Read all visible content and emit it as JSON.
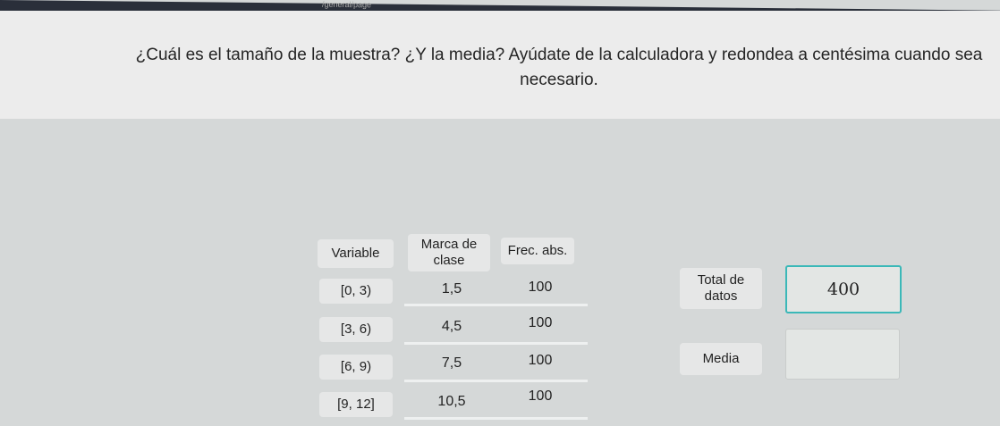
{
  "browser": {
    "url_fragment": "/general/page"
  },
  "question": "¿Cuál es el tamaño de la muestra? ¿Y la media? Ayúdate de la calculadora y redondea a centésima cuando sea necesario.",
  "table": {
    "headers": [
      "Variable",
      "Marca de clase",
      "Frec. abs."
    ],
    "rows": [
      {
        "variable": "[0, 3)",
        "marca": "1,5",
        "frec": "100"
      },
      {
        "variable": "[3, 6)",
        "marca": "4,5",
        "frec": "100"
      },
      {
        "variable": "[6, 9)",
        "marca": "7,5",
        "frec": "100"
      },
      {
        "variable": "[9, 12]",
        "marca": "10,5",
        "frec": "100"
      }
    ]
  },
  "answers": {
    "total_label": "Total de datos",
    "total_value": "400",
    "media_label": "Media",
    "media_value": ""
  },
  "colors": {
    "focus_border": "#3bb8b8"
  }
}
